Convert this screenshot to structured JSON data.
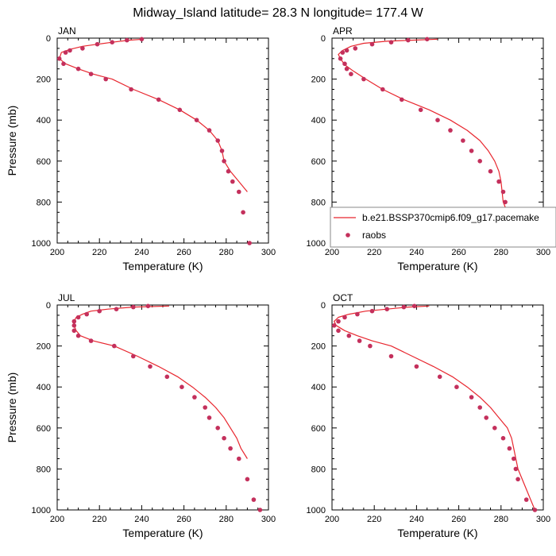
{
  "figure": {
    "title": "Midway_Island  latitude= 28.3 N longitude= 177.4 W"
  },
  "colors": {
    "model_line": "#e8262e",
    "obs_marker": "#c4305c",
    "axis": "#000000",
    "legend_frame": "#8a8a8a"
  },
  "legend": {
    "model_label": "b.e21.BSSP370cmip6.f09_g17.pacemake",
    "obs_label": "raobs",
    "placement": "lower-right of APR panel, extending past the panel edge"
  },
  "chart_data": [
    {
      "type": "line",
      "panel": "JAN",
      "xlabel": "Temperature (K)",
      "ylabel": "Pressure (mb)",
      "xlim": [
        200,
        300
      ],
      "ylim": [
        1000,
        0
      ],
      "y_reversed": true,
      "xticks": [
        "200",
        "220",
        "240",
        "260",
        "280",
        "300"
      ],
      "yticks": [
        "0",
        "200",
        "400",
        "600",
        "800",
        "1000"
      ],
      "model": {
        "temperature": [
          241,
          234,
          226,
          219,
          212,
          206,
          202,
          201,
          204,
          210,
          217,
          226,
          236,
          248,
          258,
          266,
          272,
          276,
          278,
          279,
          282,
          286,
          290
        ],
        "pressure": [
          5,
          10,
          20,
          30,
          40,
          55,
          70,
          100,
          125,
          150,
          175,
          200,
          250,
          300,
          350,
          400,
          450,
          500,
          550,
          600,
          650,
          700,
          750
        ]
      },
      "obs": {
        "temperature": [
          240,
          233,
          226,
          219,
          212,
          206,
          204,
          201,
          203,
          210,
          216,
          223,
          235,
          248,
          258,
          266,
          272,
          276,
          278,
          279,
          281,
          283,
          286,
          288,
          291
        ],
        "pressure": [
          5,
          10,
          20,
          30,
          50,
          60,
          70,
          100,
          125,
          150,
          175,
          200,
          250,
          300,
          350,
          400,
          450,
          500,
          550,
          600,
          650,
          700,
          750,
          850,
          1000
        ]
      }
    },
    {
      "type": "line",
      "panel": "APR",
      "xlabel": "Temperature (K)",
      "ylabel": "",
      "xlim": [
        200,
        300
      ],
      "ylim": [
        1000,
        0
      ],
      "y_reversed": true,
      "xticks": [
        "200",
        "220",
        "240",
        "260",
        "280",
        "300"
      ],
      "yticks": [
        "0",
        "200",
        "400",
        "600",
        "800",
        "1000"
      ],
      "model": {
        "temperature": [
          250,
          238,
          226,
          215,
          209,
          205,
          203,
          204,
          206,
          210,
          216,
          224,
          234,
          246,
          256,
          264,
          270,
          274,
          277,
          279,
          280,
          281,
          285,
          290
        ],
        "pressure": [
          5,
          10,
          15,
          25,
          40,
          60,
          80,
          100,
          130,
          160,
          200,
          250,
          300,
          350,
          400,
          450,
          500,
          550,
          600,
          650,
          700,
          800,
          900,
          1000
        ]
      },
      "obs": {
        "temperature": [
          245,
          236,
          228,
          219,
          211,
          207,
          205,
          204,
          206,
          207,
          209,
          215,
          224,
          233,
          242,
          250,
          256,
          262,
          266,
          270,
          275,
          279,
          281,
          282,
          283,
          285,
          287,
          288,
          290
        ],
        "pressure": [
          5,
          10,
          20,
          30,
          50,
          60,
          70,
          100,
          125,
          150,
          175,
          200,
          250,
          300,
          350,
          400,
          450,
          500,
          550,
          600,
          650,
          700,
          750,
          800,
          850,
          900,
          950,
          1000,
          1000
        ]
      }
    },
    {
      "type": "line",
      "panel": "JUL",
      "xlabel": "Temperature (K)",
      "ylabel": "Pressure (mb)",
      "xlim": [
        200,
        300
      ],
      "ylim": [
        1000,
        0
      ],
      "y_reversed": true,
      "xticks": [
        "200",
        "220",
        "240",
        "260",
        "280",
        "300"
      ],
      "yticks": [
        "0",
        "200",
        "400",
        "600",
        "800",
        "1000"
      ],
      "model": {
        "temperature": [
          253,
          236,
          224,
          216,
          212,
          209,
          208,
          208,
          209,
          211,
          217,
          227,
          238,
          248,
          257,
          264,
          270,
          275,
          279,
          282,
          285,
          287,
          290
        ],
        "pressure": [
          5,
          10,
          20,
          30,
          45,
          60,
          80,
          100,
          125,
          150,
          175,
          200,
          250,
          300,
          350,
          400,
          450,
          500,
          550,
          600,
          650,
          700,
          750
        ]
      },
      "obs": {
        "temperature": [
          243,
          236,
          228,
          220,
          214,
          210,
          208,
          208,
          208,
          210,
          216,
          227,
          236,
          244,
          252,
          259,
          265,
          270,
          272,
          276,
          279,
          282,
          286,
          290,
          293,
          296
        ],
        "pressure": [
          5,
          10,
          20,
          30,
          45,
          60,
          80,
          100,
          125,
          150,
          175,
          200,
          250,
          300,
          350,
          400,
          450,
          500,
          550,
          600,
          650,
          700,
          750,
          850,
          950,
          1000
        ]
      }
    },
    {
      "type": "line",
      "panel": "OCT",
      "xlabel": "Temperature (K)",
      "ylabel": "",
      "xlim": [
        200,
        300
      ],
      "ylim": [
        1000,
        0
      ],
      "y_reversed": true,
      "xticks": [
        "200",
        "220",
        "240",
        "260",
        "280",
        "300"
      ],
      "yticks": [
        "0",
        "200",
        "400",
        "600",
        "800",
        "1000"
      ],
      "model": {
        "temperature": [
          246,
          236,
          226,
          216,
          208,
          203,
          201,
          202,
          206,
          212,
          219,
          228,
          238,
          248,
          257,
          264,
          270,
          275,
          279,
          283,
          285,
          286,
          288,
          296
        ],
        "pressure": [
          5,
          10,
          20,
          30,
          45,
          60,
          80,
          100,
          125,
          150,
          175,
          200,
          250,
          300,
          350,
          400,
          450,
          500,
          550,
          600,
          650,
          700,
          800,
          1000
        ]
      },
      "obs": {
        "temperature": [
          239,
          234,
          226,
          219,
          212,
          206,
          203,
          201,
          203,
          208,
          213,
          218,
          228,
          240,
          251,
          259,
          266,
          270,
          273,
          277,
          281,
          284,
          286,
          287,
          288,
          292,
          296
        ],
        "pressure": [
          5,
          10,
          20,
          30,
          45,
          60,
          80,
          100,
          125,
          150,
          175,
          200,
          250,
          300,
          350,
          400,
          450,
          500,
          550,
          600,
          650,
          700,
          750,
          800,
          850,
          950,
          1000
        ]
      }
    }
  ]
}
